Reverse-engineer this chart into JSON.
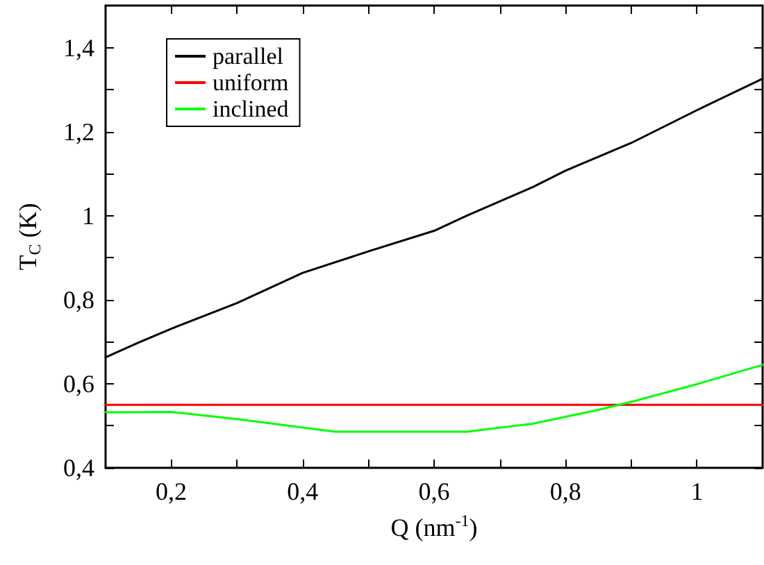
{
  "chart_data": {
    "type": "line",
    "xlabel": "Q (nm$^{-1}$)",
    "ylabel": "T$_{C}$ (K)",
    "xlim": [
      0.1,
      1.1
    ],
    "xticks": [
      {
        "value": 0.2,
        "label": "0,2"
      },
      {
        "value": 0.3,
        "label": null
      },
      {
        "value": 0.4,
        "label": "0,4"
      },
      {
        "value": 0.5,
        "label": null
      },
      {
        "value": 0.6,
        "label": "0,6"
      },
      {
        "value": 0.7,
        "label": null
      },
      {
        "value": 0.8,
        "label": "0,8"
      },
      {
        "value": 0.9,
        "label": null
      },
      {
        "value": 1,
        "label": "1"
      }
    ],
    "ylim": [
      0.4,
      1.5
    ],
    "yticks": [
      {
        "value": 0.4,
        "label": "0,4"
      },
      {
        "value": 0.5,
        "label": null
      },
      {
        "value": 0.6,
        "label": "0,6"
      },
      {
        "value": 0.7,
        "label": null
      },
      {
        "value": 0.8,
        "label": "0,8"
      },
      {
        "value": 0.9,
        "label": null
      },
      {
        "value": 1,
        "label": "1"
      },
      {
        "value": 1.1,
        "label": null
      },
      {
        "value": 1.2,
        "label": "1,2"
      },
      {
        "value": 1.3,
        "label": null
      },
      {
        "value": 1.4,
        "label": "1,4"
      }
    ],
    "grid": false,
    "legend": "top left",
    "marker": "none",
    "line_style": "solid",
    "series": [
      {
        "name": "parallel",
        "color": "#000000",
        "x": [
          0.1,
          0.15,
          0.2,
          0.3,
          0.4,
          0.5,
          0.6,
          0.65,
          0.75,
          0.8,
          0.9,
          1.0,
          1.1
        ],
        "values": [
          0.663,
          0.698,
          0.731,
          0.792,
          0.864,
          0.915,
          0.964,
          1.0,
          1.068,
          1.107,
          1.173,
          1.251,
          1.326
        ]
      },
      {
        "name": "uniform",
        "color": "#ff0000",
        "x": [
          0.1,
          1.1
        ],
        "values": [
          0.55,
          0.55
        ]
      },
      {
        "name": "inclined",
        "color": "#00ff00",
        "x": [
          0.1,
          0.2,
          0.3,
          0.45,
          0.6,
          0.65,
          0.75,
          0.85,
          0.9,
          1.0,
          1.1
        ],
        "values": [
          0.532,
          0.533,
          0.516,
          0.486,
          0.486,
          0.486,
          0.505,
          0.538,
          0.557,
          0.599,
          0.645
        ]
      }
    ]
  }
}
